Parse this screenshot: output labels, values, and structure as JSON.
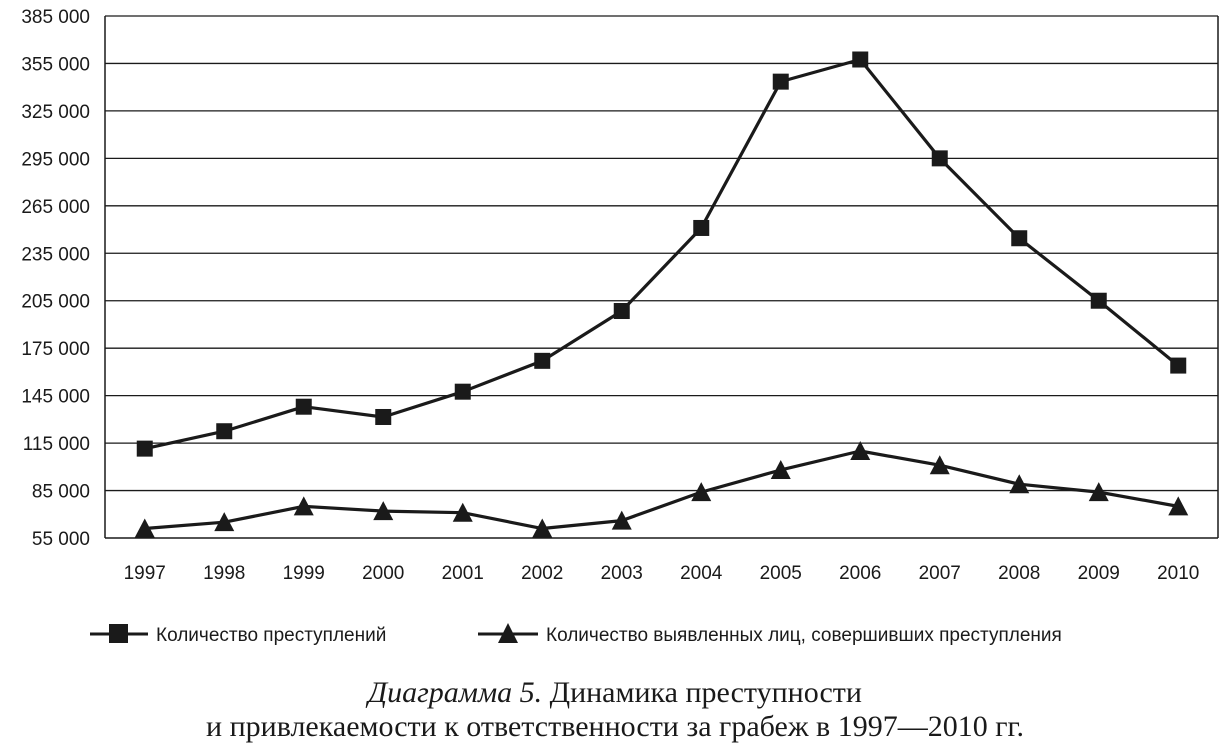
{
  "chart_data": {
    "type": "line",
    "categories": [
      "1997",
      "1998",
      "1999",
      "2000",
      "2001",
      "2002",
      "2003",
      "2004",
      "2005",
      "2006",
      "2007",
      "2008",
      "2009",
      "2010"
    ],
    "ylim": [
      55000,
      385000
    ],
    "yticks": [
      55000,
      85000,
      115000,
      145000,
      175000,
      205000,
      235000,
      265000,
      295000,
      325000,
      355000,
      385000
    ],
    "ytick_labels": [
      "55 000",
      "85 000",
      "115 000",
      "145 000",
      "175 000",
      "205 000",
      "235 000",
      "265 000",
      "295 000",
      "325 000",
      "355 000",
      "385 000"
    ],
    "grid": "horizontal",
    "legend_position": "bottom",
    "series": [
      {
        "name": "Количество преступлений",
        "marker": "square",
        "values": [
          111500,
          122500,
          138000,
          131500,
          147500,
          167000,
          198500,
          251000,
          343500,
          357500,
          295000,
          244500,
          205000,
          164000
        ]
      },
      {
        "name": "Количество выявленных лиц, совершивших преступления",
        "marker": "triangle",
        "values": [
          61000,
          65000,
          75000,
          72000,
          71000,
          61000,
          66000,
          84000,
          98000,
          110000,
          101000,
          89000,
          84000,
          75000
        ]
      }
    ],
    "color": "#1a1a1a"
  },
  "caption": {
    "prefix": "Диаграмма 5.",
    "line1_rest": " Динамика преступности",
    "line2": "и привлекаемости к ответственности за грабеж в 1997—2010 гг."
  }
}
